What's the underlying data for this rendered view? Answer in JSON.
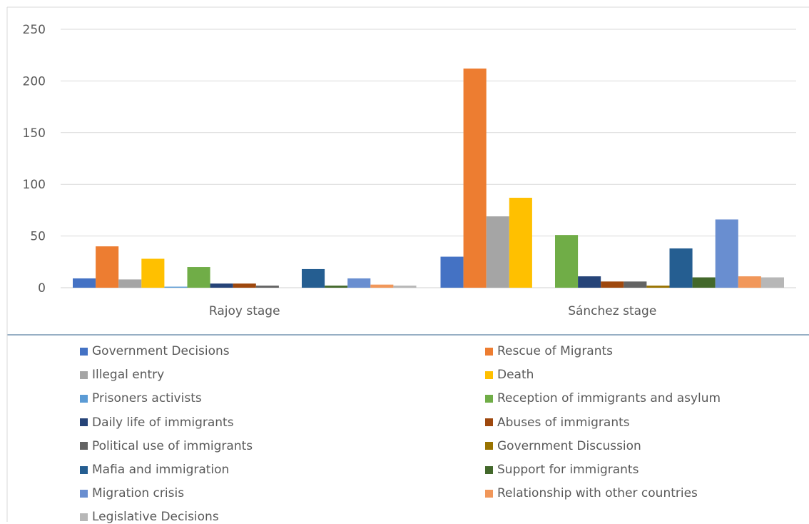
{
  "chart_data": {
    "type": "bar",
    "categories": [
      "Rajoy stage",
      "Sánchez stage"
    ],
    "ylim": [
      0,
      250
    ],
    "yticks": [
      0,
      50,
      100,
      150,
      200,
      250
    ],
    "grid": true,
    "legend_placement": "bottom",
    "series": [
      {
        "name": "Government Decisions",
        "color": "#4472C4",
        "values": [
          9,
          30
        ]
      },
      {
        "name": "Rescue of Migrants",
        "color": "#ED7D31",
        "values": [
          40,
          212
        ]
      },
      {
        "name": "Illegal entry",
        "color": "#A5A5A5",
        "values": [
          8,
          69
        ]
      },
      {
        "name": "Death",
        "color": "#FFC000",
        "values": [
          28,
          87
        ]
      },
      {
        "name": "Prisoners activists",
        "color": "#5B9BD5",
        "values": [
          1,
          0
        ]
      },
      {
        "name": "Reception of immigrants and asylum",
        "color": "#70AD47",
        "values": [
          20,
          51
        ]
      },
      {
        "name": "Daily life of immigrants",
        "color": "#264478",
        "values": [
          4,
          11
        ]
      },
      {
        "name": "Abuses of immigrants",
        "color": "#9E480E",
        "values": [
          4,
          6
        ]
      },
      {
        "name": "Political use of immigrants",
        "color": "#636363",
        "values": [
          2,
          6
        ]
      },
      {
        "name": "Government Discussion",
        "color": "#997300",
        "values": [
          0,
          2
        ]
      },
      {
        "name": "Mafia and immigration",
        "color": "#255E91",
        "values": [
          18,
          38
        ]
      },
      {
        "name": "Support for immigrants",
        "color": "#43682B",
        "values": [
          2,
          10
        ]
      },
      {
        "name": "Migration crisis",
        "color": "#698ED0",
        "values": [
          9,
          66
        ]
      },
      {
        "name": "Relationship with other countries",
        "color": "#F1975A",
        "values": [
          3,
          11
        ]
      },
      {
        "name": "Legislative Decisions",
        "color": "#B7B7B7",
        "values": [
          2,
          10
        ]
      }
    ]
  }
}
